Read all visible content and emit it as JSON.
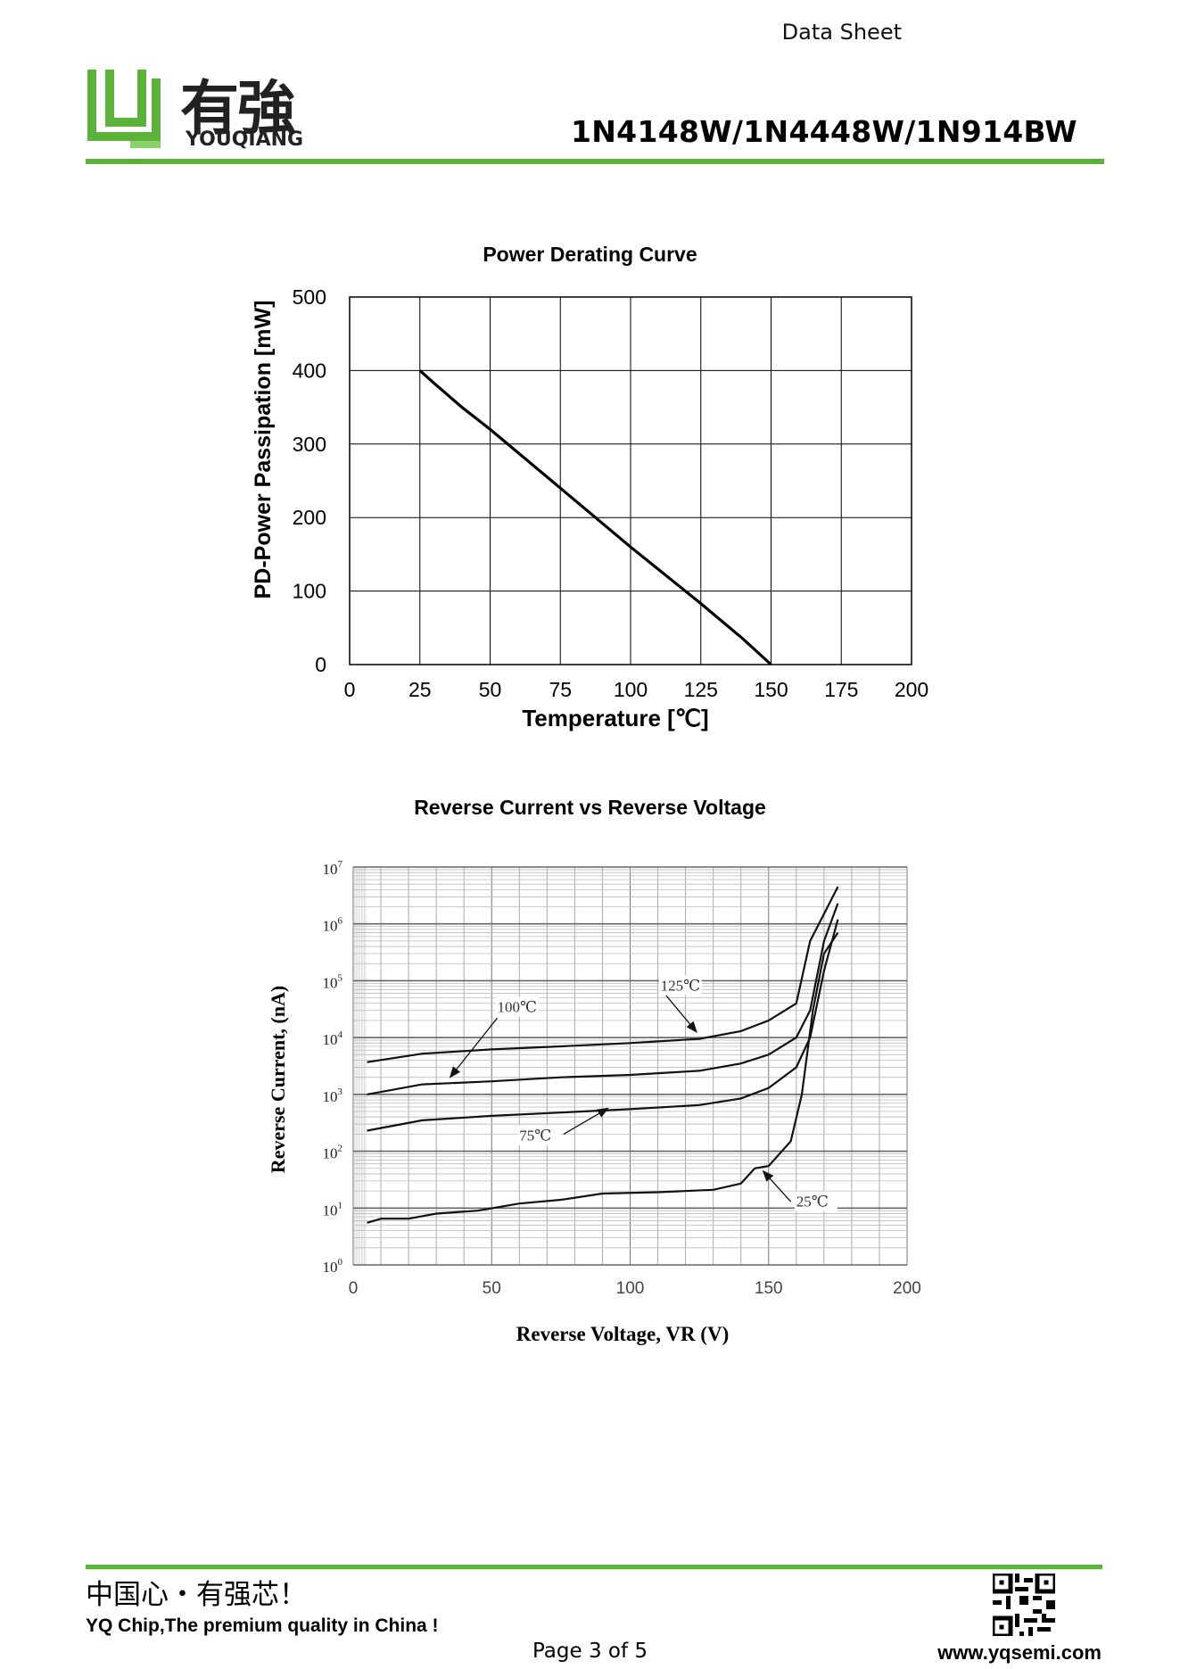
{
  "header": {
    "doc_type": "Data Sheet",
    "brand_cn": "有強",
    "brand_en": "YOUQIANG",
    "part_numbers": "1N4148W/1N4448W/1N914BW",
    "brand_color": "#5cb23a"
  },
  "charts": {
    "power": {
      "title": "Power Derating Curve",
      "ylabel": "PD-Power Passipation [mW]",
      "xlabel": "Temperature [℃]",
      "xticks": [
        "0",
        "25",
        "50",
        "75",
        "100",
        "125",
        "150",
        "175",
        "200"
      ],
      "yticks": [
        "0",
        "100",
        "200",
        "300",
        "400",
        "500"
      ]
    },
    "reverse": {
      "title": "Reverse Current vs Reverse Voltage",
      "ylabel": "Reverse Current, (nA)",
      "xlabel": "Reverse Voltage, VR (V)",
      "xticks": [
        "0",
        "50",
        "100",
        "150",
        "200"
      ],
      "ytick_exponents": [
        "0",
        "1",
        "2",
        "3",
        "4",
        "5",
        "6",
        "7"
      ],
      "ytick_base": "10",
      "annotations": [
        "125℃",
        "100℃",
        "75℃",
        "25℃"
      ]
    }
  },
  "chart_data": [
    {
      "type": "line",
      "title": "Power Derating Curve",
      "xlabel": "Temperature [℃]",
      "ylabel": "PD-Power Passipation [mW]",
      "xlim": [
        0,
        200
      ],
      "ylim": [
        0,
        500
      ],
      "grid": true,
      "series": [
        {
          "x": [
            25,
            30,
            40,
            50,
            75,
            100,
            125,
            140,
            150
          ],
          "y": [
            400,
            383,
            350,
            320,
            240,
            160,
            83,
            35,
            0
          ]
        }
      ]
    },
    {
      "type": "line",
      "title": "Reverse Current vs Reverse Voltage",
      "xlabel": "Reverse Voltage, VR (V)",
      "ylabel": "Reverse Current, (nA)",
      "xlim": [
        0,
        200
      ],
      "ylim": [
        1,
        10000000
      ],
      "yscale": "log",
      "grid": true,
      "series": [
        {
          "name": "125℃",
          "x": [
            5,
            25,
            50,
            75,
            100,
            125,
            140,
            150,
            160,
            165,
            170,
            175
          ],
          "y": [
            3700,
            5200,
            6200,
            7000,
            8000,
            9500,
            13000,
            20000,
            40000,
            500000,
            1500000,
            4500000
          ]
        },
        {
          "name": "100℃",
          "x": [
            5,
            25,
            50,
            75,
            100,
            125,
            140,
            150,
            160,
            165,
            170,
            175
          ],
          "y": [
            1000,
            1500,
            1700,
            2000,
            2200,
            2600,
            3500,
            5000,
            10000,
            30000,
            500000,
            2300000
          ]
        },
        {
          "name": "75℃",
          "x": [
            5,
            25,
            50,
            75,
            100,
            125,
            140,
            150,
            160,
            165,
            170,
            175
          ],
          "y": [
            230,
            350,
            420,
            480,
            550,
            650,
            850,
            1300,
            3000,
            10000,
            150000,
            1200000
          ]
        },
        {
          "name": "25℃",
          "x": [
            5,
            10,
            20,
            30,
            45,
            60,
            75,
            90,
            110,
            130,
            140,
            145,
            150,
            158,
            162,
            166,
            170,
            175
          ],
          "y": [
            5.5,
            6.5,
            6.5,
            8,
            9,
            12,
            14,
            18,
            19,
            21,
            27,
            50,
            55,
            150,
            1000,
            30000,
            300000,
            700000
          ]
        }
      ]
    }
  ],
  "footer": {
    "slogan_cn": "中国心・有强芯！",
    "slogan_en": "YQ Chip,The premium quality in China !",
    "page": "Page 3 of 5",
    "url": "www.yqsemi.com"
  }
}
